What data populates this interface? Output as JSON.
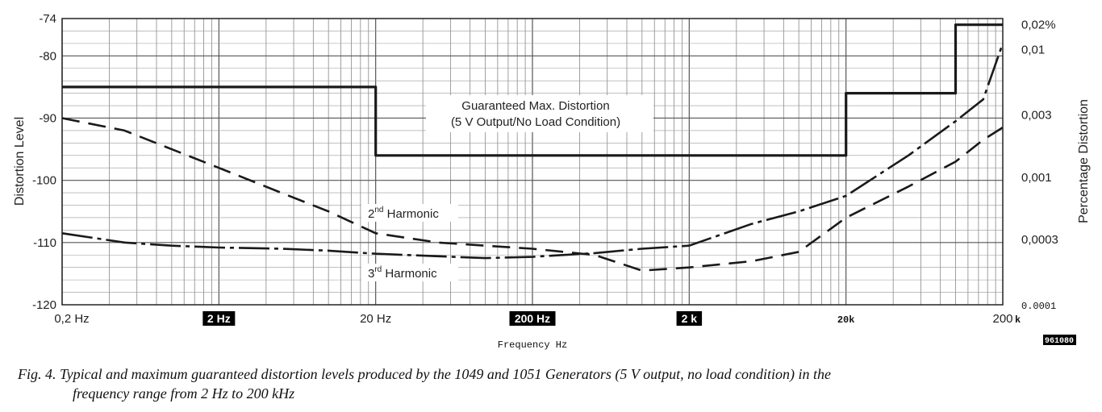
{
  "chart_data": {
    "type": "line",
    "xscale": "log",
    "x_ticks": [
      "0,2 Hz",
      "2 Hz",
      "20 Hz",
      "200 Hz",
      "2 k",
      "20k",
      "200"
    ],
    "x_ticks_highlighted": [
      false,
      true,
      false,
      true,
      true,
      false,
      false
    ],
    "x_unit_suffix": "k",
    "xlabel": "Frequency Hz",
    "ylabel": "Distortion Level",
    "y2label": "Percentage Distortion",
    "ylim": [
      -120,
      -74
    ],
    "y_ticks": [
      "-74",
      "-80",
      "-90",
      "-100",
      "-110",
      "-120"
    ],
    "y2_ticks": [
      "0,02%",
      "0,01",
      "0,003",
      "0,001",
      "0,0003",
      "0.0001"
    ],
    "grid": true,
    "annotations": {
      "limit_line1": "Guaranteed Max. Distortion",
      "limit_line2": "(5 V Output/No Load Condition)",
      "h2_base": "2",
      "h2_sup": "nd",
      "h2_text": "Harmonic",
      "h3_base": "3",
      "h3_sup": "rd",
      "h3_text": "Harmonic",
      "figure_code": "961080"
    },
    "series": [
      {
        "name": "Guaranteed Max. Distortion",
        "style": "solid-thick",
        "step": true,
        "x": [
          0.2,
          20,
          20,
          20000,
          20000,
          100000,
          100000,
          200000
        ],
        "y": [
          -85,
          -85,
          -96,
          -96,
          -86,
          -86,
          -75,
          -75
        ]
      },
      {
        "name": "2nd Harmonic",
        "style": "dashed",
        "x": [
          0.2,
          0.5,
          1,
          2,
          5,
          10,
          20,
          50,
          100,
          200,
          500,
          1000,
          2000,
          5000,
          10000,
          20000,
          50000,
          100000,
          150000,
          200000
        ],
        "y": [
          -90,
          -92,
          -95,
          -98,
          -102,
          -105,
          -108.5,
          -110,
          -110.5,
          -111,
          -112,
          -114.5,
          -114,
          -113,
          -111.5,
          -106,
          -101,
          -97,
          -93.5,
          -91.5
        ]
      },
      {
        "name": "3rd Harmonic",
        "style": "dash-dot",
        "x": [
          0.2,
          0.5,
          1,
          2,
          5,
          10,
          20,
          50,
          100,
          200,
          500,
          1000,
          2000,
          5000,
          10000,
          20000,
          50000,
          100000,
          150000,
          200000
        ],
        "y": [
          -108.5,
          -110,
          -110.5,
          -110.8,
          -111,
          -111.3,
          -111.8,
          -112.2,
          -112.5,
          -112.3,
          -111.7,
          -111,
          -110.5,
          -107,
          -105,
          -102.5,
          -96,
          -90.5,
          -87,
          -78
        ]
      }
    ]
  },
  "caption": {
    "line1": "Fig. 4. Typical and  maximum  guaranteed distortion levels produced by the 1049 and 1051 Generators (5 V output, no load condition) in the",
    "line2": "frequency range from 2 Hz to 200     kHz"
  }
}
